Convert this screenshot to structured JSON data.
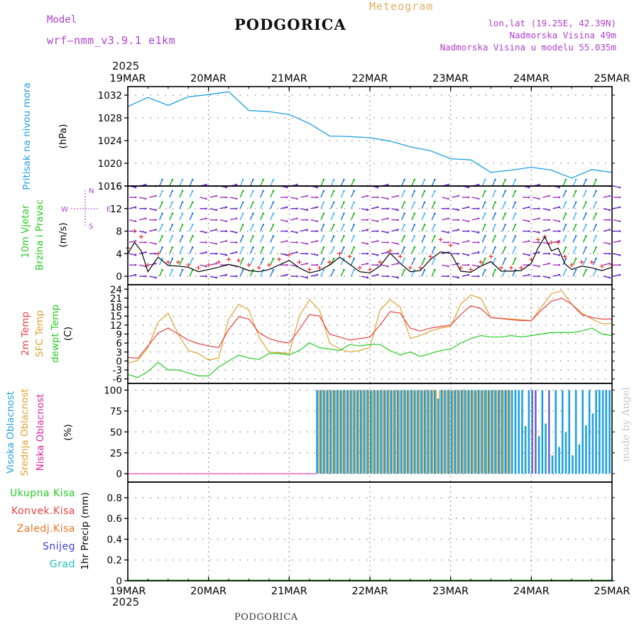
{
  "header": {
    "model_label": "Model",
    "model_name": "wrf–nmm_v3.9.1  e1km",
    "location": "PODGORICA",
    "meteogram": "Meteogram",
    "coords": "lon,lat (19.25E, 42.39N)",
    "altitude": "Nadmorska Visina 49m",
    "model_altitude": "Nadmorska Visina u modelu 55.035m",
    "footer_location": "PODGORICA",
    "credit": "made by Angel",
    "year": "2025"
  },
  "colors": {
    "pressure": "#1f9fe0",
    "temp2m": "#e84040",
    "sfc_temp": "#e0a030",
    "dewpt": "#22cc22",
    "cloud_high": "#1ea0e0",
    "cloud_mid": "#e0a030",
    "cloud_low": "#e020a0",
    "header_purple": "#b040d0",
    "header_orange": "#e0b060",
    "precip_total": "#22cc22",
    "precip_conv": "#e84040",
    "precip_frz": "#f07020",
    "snow": "#4040e0",
    "hail": "#20c0c0"
  },
  "chart_data": [
    {
      "type": "line",
      "panel": "pressure",
      "ylabel_left": "Pritisak na nivou mora",
      "ylabel_unit": "(hPa)",
      "yticks": [
        1016,
        1020,
        1024,
        1028,
        1032
      ],
      "ylim": [
        1016,
        1033.5
      ],
      "x_hours": [
        0,
        6,
        12,
        18,
        24,
        30,
        36,
        42,
        48,
        54,
        60,
        66,
        72,
        78,
        84,
        90,
        96,
        102,
        108,
        114,
        120,
        126,
        132,
        138,
        144
      ],
      "series": [
        {
          "values": [
            1030.0,
            1031.6,
            1030.2,
            1031.7,
            1032.1,
            1032.6,
            1029.3,
            1029.1,
            1028.6,
            1027.0,
            1024.8,
            1024.7,
            1024.5,
            1023.9,
            1022.9,
            1022.2,
            1020.8,
            1020.6,
            1018.4,
            1018.8,
            1019.3,
            1018.8,
            1017.4,
            1018.9,
            1018.4
          ]
        }
      ]
    },
    {
      "type": "line",
      "panel": "wind",
      "ylabel_left": "10m Vjetar",
      "ylabel_left2": "Brzina i Pravac",
      "ylabel_unit": "(m/s)",
      "compass": [
        "N",
        "E",
        "S",
        "W"
      ],
      "yticks": [
        0,
        4,
        8,
        12,
        16
      ],
      "ylim": [
        -1.5,
        16
      ],
      "x_hours": [
        0,
        2,
        4,
        6,
        9,
        12,
        15,
        18,
        21,
        24,
        27,
        30,
        33,
        36,
        39,
        42,
        45,
        48,
        51,
        54,
        57,
        60,
        63,
        66,
        69,
        72,
        75,
        78,
        81,
        84,
        87,
        90,
        93,
        96,
        99,
        102,
        105,
        108,
        111,
        114,
        117,
        120,
        122,
        124,
        126,
        128,
        130,
        132,
        135,
        138,
        141,
        144
      ],
      "series": [
        {
          "name_key": "speed",
          "values": [
            4.0,
            6.0,
            4.5,
            0.8,
            3.4,
            1.9,
            1.8,
            1.6,
            0.8,
            1.2,
            1.6,
            2.1,
            1.7,
            1.0,
            0.8,
            1.2,
            2.0,
            2.8,
            1.5,
            0.6,
            1.0,
            2.0,
            3.4,
            2.1,
            0.8,
            0.6,
            1.8,
            4.1,
            2.3,
            0.8,
            1.0,
            3.0,
            4.3,
            4.1,
            0.9,
            0.7,
            1.8,
            2.6,
            0.9,
            0.9,
            1.0,
            2.3,
            5.0,
            7.0,
            4.5,
            5.0,
            2.2,
            1.2,
            1.8,
            1.5,
            1.0,
            1.6
          ]
        },
        {
          "name_key": "gust",
          "values": [
            5.0,
            8.0,
            7.0,
            2.0,
            4.0,
            2.5,
            2.5,
            2.0,
            1.5,
            2.0,
            2.5,
            3.0,
            2.8,
            2.0,
            1.5,
            2.0,
            3.0,
            3.8,
            2.5,
            1.2,
            1.5,
            2.5,
            4.0,
            3.5,
            1.5,
            1.2,
            2.5,
            4.5,
            3.5,
            1.5,
            1.5,
            3.5,
            6.5,
            5.5,
            1.5,
            1.2,
            2.5,
            3.5,
            1.5,
            1.5,
            1.5,
            3.0,
            6.5,
            7.0,
            6.0,
            6.0,
            3.5,
            2.0,
            2.5,
            2.5,
            1.8,
            2.0
          ]
        }
      ]
    },
    {
      "type": "line",
      "panel": "temperature",
      "ylabel_left": "2m Temp",
      "ylabel_left2": "SFC Temp",
      "ylabel_left3": "dewpt Temp",
      "ylabel_unit": "(C)",
      "yticks": [
        -6,
        -3,
        0,
        3,
        6,
        9,
        12,
        15,
        18,
        21,
        24
      ],
      "ylim": [
        -7.5,
        25.5
      ],
      "x_hours": [
        0,
        3,
        6,
        9,
        12,
        15,
        18,
        21,
        24,
        27,
        30,
        33,
        36,
        39,
        42,
        45,
        48,
        51,
        54,
        57,
        60,
        63,
        66,
        69,
        72,
        75,
        78,
        81,
        84,
        87,
        90,
        93,
        96,
        99,
        102,
        105,
        108,
        111,
        114,
        117,
        120,
        123,
        126,
        129,
        132,
        135,
        138,
        141,
        144
      ],
      "series": [
        {
          "name_key": "temp2m",
          "values": [
            1.2,
            0.9,
            5.0,
            9.3,
            11.0,
            9.0,
            7.0,
            5.8,
            5.0,
            4.5,
            10.5,
            14.8,
            14.0,
            9.5,
            7.5,
            6.5,
            6.0,
            10.5,
            15.5,
            15.0,
            9.0,
            8.0,
            7.0,
            7.5,
            8.0,
            12.0,
            16.5,
            16.0,
            11.0,
            10.0,
            11.0,
            11.5,
            12.0,
            15.5,
            18.5,
            17.5,
            14.5,
            14.2,
            13.8,
            13.5,
            13.5,
            17.0,
            20.0,
            21.0,
            19.0,
            15.5,
            14.5,
            14.0,
            14.0
          ]
        },
        {
          "name_key": "sfc_temp",
          "values": [
            -0.7,
            0.2,
            4.5,
            13.0,
            16.0,
            9.0,
            3.5,
            2.5,
            0.3,
            1.0,
            14.0,
            19.0,
            17.0,
            8.0,
            3.0,
            2.8,
            2.5,
            15.0,
            20.5,
            17.0,
            6.0,
            4.0,
            3.0,
            3.5,
            4.5,
            17.0,
            20.5,
            18.0,
            7.5,
            8.5,
            10.0,
            11.0,
            11.5,
            19.0,
            22.0,
            21.0,
            14.5,
            14.3,
            14.0,
            13.8,
            13.5,
            18.0,
            22.5,
            23.5,
            19.0,
            16.0,
            14.0,
            12.5,
            12.5
          ]
        },
        {
          "name_key": "dewpt",
          "values": [
            -4.5,
            -5.5,
            -3.5,
            -0.5,
            -3.0,
            -3.0,
            -4.0,
            -5.0,
            -5.0,
            -2.0,
            0.0,
            2.0,
            1.0,
            0.5,
            2.5,
            2.5,
            2.0,
            3.5,
            6.0,
            4.5,
            4.0,
            3.5,
            5.5,
            5.0,
            5.5,
            5.5,
            3.5,
            2.0,
            3.0,
            1.5,
            2.5,
            3.5,
            4.0,
            6.0,
            7.5,
            8.5,
            8.0,
            8.0,
            8.5,
            8.0,
            8.5,
            9.0,
            9.5,
            9.5,
            9.5,
            10.0,
            11.0,
            9.0,
            8.5
          ]
        }
      ]
    },
    {
      "type": "bar",
      "panel": "clouds",
      "ylabel_left": "Visoka Oblacnost",
      "ylabel_left2": "Srednja Oblacnost",
      "ylabel_left3": "Niska Oblacnost",
      "ylabel_unit": "(%)",
      "yticks": [
        0,
        25,
        50,
        75,
        100
      ],
      "ylim": [
        -10,
        108
      ],
      "cloud_start_hour": 56,
      "high_overrides": {
        "92": 90,
        "118": 57,
        "122": 45,
        "124": 60,
        "126": 22,
        "128": 32,
        "130": 50,
        "132": 22,
        "134": 35,
        "136": 58,
        "138": 72
      },
      "low_hours": [
        120,
        121,
        125
      ],
      "mid_zero_from": 114
    },
    {
      "type": "line",
      "panel": "precip",
      "legend": [
        "Ukupna Kisa",
        "Konvek.Kisa",
        "Zaledj.Kisa",
        "Snijeg",
        "Grad"
      ],
      "ylabel_unit": "1hr Precip (mm)",
      "yticks": [
        0,
        0.2,
        0.4,
        0.6,
        0.8
      ],
      "ylim": [
        0,
        0.95
      ]
    }
  ],
  "x_axis": {
    "labels": [
      "19MAR",
      "20MAR",
      "21MAR",
      "22MAR",
      "23MAR",
      "24MAR",
      "25MAR"
    ]
  }
}
